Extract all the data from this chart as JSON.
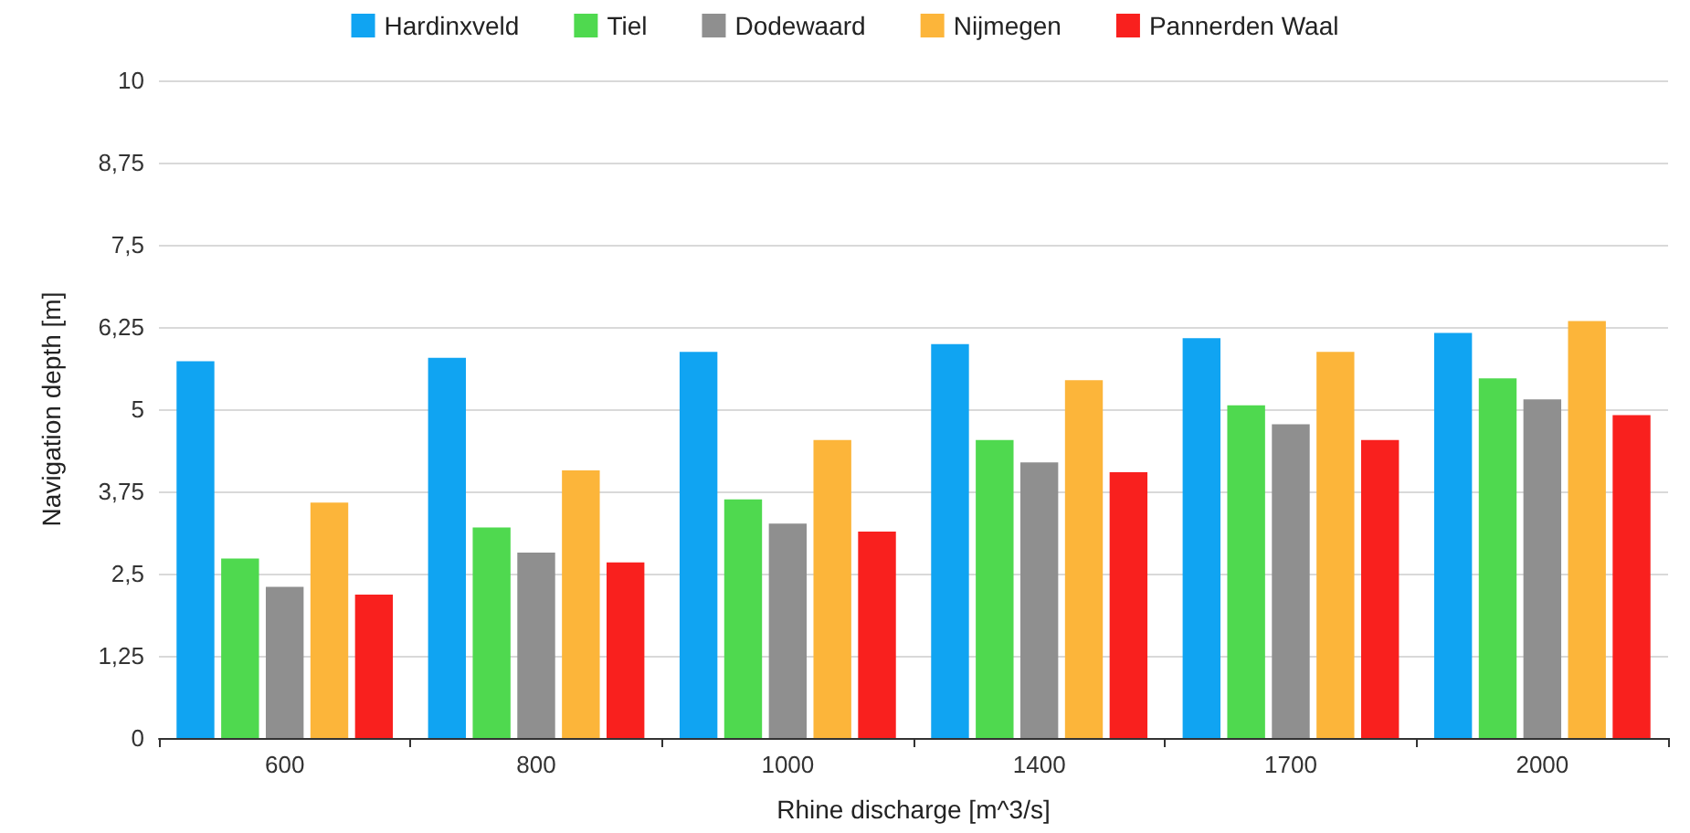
{
  "chart_data": {
    "type": "bar",
    "xlabel": "Rhine discharge [m^3/s]",
    "ylabel": "Navigation depth [m]",
    "categories": [
      "600",
      "800",
      "1000",
      "1400",
      "1700",
      "2000"
    ],
    "series": [
      {
        "name": "Hardinxveld",
        "color": "#10a4f2",
        "values": [
          5.73,
          5.78,
          5.87,
          5.99,
          6.08,
          6.16
        ]
      },
      {
        "name": "Tiel",
        "color": "#4fd94f",
        "values": [
          2.73,
          3.2,
          3.63,
          4.53,
          5.06,
          5.47
        ]
      },
      {
        "name": "Dodewaard",
        "color": "#8f8f8f",
        "values": [
          2.3,
          2.82,
          3.26,
          4.19,
          4.77,
          5.15
        ]
      },
      {
        "name": "Nijmegen",
        "color": "#fcb53a",
        "values": [
          3.58,
          4.07,
          4.53,
          5.44,
          5.87,
          6.34
        ]
      },
      {
        "name": "Pannerden Waal",
        "color": "#f9201e",
        "values": [
          2.18,
          2.67,
          3.14,
          4.04,
          4.53,
          4.91
        ]
      }
    ],
    "ylim": [
      0,
      10
    ],
    "yticks": [
      0,
      {
        "value": 1.25,
        "label": "1,25"
      },
      {
        "value": 2.5,
        "label": "2,5"
      },
      {
        "value": 3.75,
        "label": "3,75"
      },
      5,
      {
        "value": 6.25,
        "label": "6,25"
      },
      {
        "value": 7.5,
        "label": "7,5"
      },
      {
        "value": 8.75,
        "label": "8,75"
      },
      10
    ],
    "grid": "y",
    "legend": "top"
  }
}
